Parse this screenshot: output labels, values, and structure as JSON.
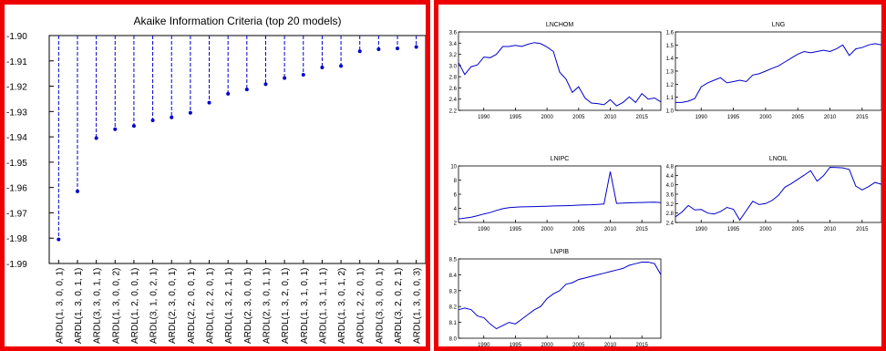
{
  "colors": {
    "frame": "#ee0000",
    "series": "#0000cc",
    "axis": "#000000",
    "background": "#ffffff"
  },
  "chart_data": [
    {
      "type": "lollipop",
      "title": "Akaike Information Criteria (top 20 models)",
      "ylim": [
        -1.99,
        -1.9
      ],
      "yticks": [
        -1.9,
        -1.91,
        -1.92,
        -1.93,
        -1.94,
        -1.95,
        -1.96,
        -1.97,
        -1.98,
        -1.99
      ],
      "ytick_labels": [
        "-1.90",
        "-1.91",
        "-1.92",
        "-1.93",
        "-1.94",
        "-1.95",
        "-1.96",
        "-1.97",
        "-1.98",
        "-1.99"
      ],
      "grid": false,
      "categories": [
        "ARDL(1, 3, 0, 0, 1)",
        "ARDL(1, 3, 0, 1, 1)",
        "ARDL(3, 3, 0, 1, 1)",
        "ARDL(1, 3, 0, 0, 2)",
        "ARDL(1, 2, 0, 0, 1)",
        "ARDL(3, 1, 0, 2, 1)",
        "ARDL(2, 3, 0, 0, 1)",
        "ARDL(2, 2, 0, 0, 1)",
        "ARDL(1, 2, 2, 0, 1)",
        "ARDL(1, 3, 2, 1, 1)",
        "ARDL(2, 3, 0, 0, 1)",
        "ARDL(2, 3, 0, 1, 1)",
        "ARDL(1, 3, 2, 0, 1)",
        "ARDL(1, 3, 1, 0, 1)",
        "ARDL(1, 3, 1, 1, 1)",
        "ARDL(1, 3, 0, 1, 2)",
        "ARDL(1, 2, 2, 0, 1)",
        "ARDL(3, 3, 0, 0, 1)",
        "ARDL(3, 2, 0, 2, 1)",
        "ARDL(1, 3, 0, 0, 3)"
      ],
      "values": [
        -1.9805,
        -1.9615,
        -1.9405,
        -1.937,
        -1.9357,
        -1.9335,
        -1.9323,
        -1.9305,
        -1.9265,
        -1.923,
        -1.9213,
        -1.9192,
        -1.9168,
        -1.9155,
        -1.9126,
        -1.912,
        -1.9062,
        -1.9054,
        -1.9051,
        -1.9045
      ]
    },
    {
      "type": "line",
      "title": "LNCHOM",
      "xlim": [
        1986,
        2018
      ],
      "xticks": [
        1990,
        1995,
        2000,
        2005,
        2010,
        2015
      ],
      "ylim": [
        2.2,
        3.6
      ],
      "yticks": [
        2.2,
        2.4,
        2.6,
        2.8,
        3.0,
        3.2,
        3.4,
        3.6
      ],
      "ytick_labels": [
        "2.2",
        "2.4",
        "2.6",
        "2.8",
        "3.0",
        "3.2",
        "3.4",
        "3.6"
      ],
      "x": [
        1986,
        1987,
        1988,
        1989,
        1990,
        1991,
        1992,
        1993,
        1994,
        1995,
        1996,
        1997,
        1998,
        1999,
        2000,
        2001,
        2002,
        2003,
        2004,
        2005,
        2006,
        2007,
        2008,
        2009,
        2010,
        2011,
        2012,
        2013,
        2014,
        2015,
        2016,
        2017,
        2018
      ],
      "values": [
        3.05,
        2.84,
        2.98,
        3.01,
        3.15,
        3.14,
        3.2,
        3.34,
        3.34,
        3.36,
        3.34,
        3.38,
        3.41,
        3.39,
        3.33,
        3.25,
        2.88,
        2.76,
        2.52,
        2.62,
        2.42,
        2.33,
        2.32,
        2.3,
        2.39,
        2.28,
        2.34,
        2.44,
        2.34,
        2.5,
        2.4,
        2.42,
        2.35
      ]
    },
    {
      "type": "line",
      "title": "LNG",
      "xlim": [
        1986,
        2018
      ],
      "xticks": [
        1990,
        1995,
        2000,
        2005,
        2010,
        2015
      ],
      "ylim": [
        1.0,
        1.6
      ],
      "yticks": [
        1.0,
        1.1,
        1.2,
        1.3,
        1.4,
        1.5,
        1.6
      ],
      "ytick_labels": [
        "1.0",
        "1.1",
        "1.2",
        "1.3",
        "1.4",
        "1.5",
        "1.6"
      ],
      "x": [
        1986,
        1987,
        1988,
        1989,
        1990,
        1991,
        1992,
        1993,
        1994,
        1995,
        1996,
        1997,
        1998,
        1999,
        2000,
        2001,
        2002,
        2003,
        2004,
        2005,
        2006,
        2007,
        2008,
        2009,
        2010,
        2011,
        2012,
        2013,
        2014,
        2015,
        2016,
        2017,
        2018
      ],
      "values": [
        1.06,
        1.06,
        1.07,
        1.09,
        1.18,
        1.21,
        1.23,
        1.25,
        1.21,
        1.22,
        1.23,
        1.22,
        1.27,
        1.28,
        1.3,
        1.32,
        1.34,
        1.37,
        1.4,
        1.43,
        1.45,
        1.44,
        1.45,
        1.46,
        1.45,
        1.47,
        1.5,
        1.42,
        1.47,
        1.48,
        1.5,
        1.51,
        1.5
      ]
    },
    {
      "type": "line",
      "title": "LNIPC",
      "xlim": [
        1986,
        2018
      ],
      "xticks": [
        1990,
        1995,
        2000,
        2005,
        2010,
        2015
      ],
      "ylim": [
        2,
        10
      ],
      "yticks": [
        2,
        4,
        6,
        8,
        10
      ],
      "ytick_labels": [
        "2",
        "4",
        "6",
        "8",
        "10"
      ],
      "x": [
        1986,
        1987,
        1988,
        1989,
        1990,
        1991,
        1992,
        1993,
        1994,
        1995,
        1996,
        1997,
        1998,
        1999,
        2000,
        2001,
        2002,
        2003,
        2004,
        2005,
        2006,
        2007,
        2008,
        2009,
        2010,
        2011,
        2012,
        2013,
        2014,
        2015,
        2016,
        2017,
        2018
      ],
      "values": [
        2.5,
        2.6,
        2.75,
        2.95,
        3.2,
        3.4,
        3.7,
        3.95,
        4.1,
        4.15,
        4.2,
        4.22,
        4.25,
        4.27,
        4.3,
        4.33,
        4.35,
        4.38,
        4.4,
        4.45,
        4.48,
        4.5,
        4.55,
        4.6,
        9.2,
        4.7,
        4.75,
        4.78,
        4.8,
        4.82,
        4.85,
        4.88,
        4.8
      ]
    },
    {
      "type": "line",
      "title": "LNOIL",
      "xlim": [
        1986,
        2018
      ],
      "xticks": [
        1990,
        1995,
        2000,
        2005,
        2010,
        2015
      ],
      "ylim": [
        2.4,
        4.8
      ],
      "yticks": [
        2.4,
        2.8,
        3.2,
        3.6,
        4.0,
        4.4,
        4.8
      ],
      "ytick_labels": [
        "2.4",
        "2.8",
        "3.2",
        "3.6",
        "4.0",
        "4.4",
        "4.8"
      ],
      "x": [
        1986,
        1987,
        1988,
        1989,
        1990,
        1991,
        1992,
        1993,
        1994,
        1995,
        1996,
        1997,
        1998,
        1999,
        2000,
        2001,
        2002,
        2003,
        2004,
        2005,
        2006,
        2007,
        2008,
        2009,
        2010,
        2011,
        2012,
        2013,
        2014,
        2015,
        2016,
        2017,
        2018
      ],
      "values": [
        2.64,
        2.84,
        3.12,
        2.93,
        2.95,
        2.8,
        2.76,
        2.86,
        3.04,
        2.96,
        2.5,
        2.9,
        3.3,
        3.16,
        3.2,
        3.33,
        3.55,
        3.9,
        4.05,
        4.23,
        4.41,
        4.6,
        4.15,
        4.38,
        4.74,
        4.73,
        4.72,
        4.65,
        3.95,
        3.78,
        3.92,
        4.1,
        4.02
      ]
    },
    {
      "type": "line",
      "title": "LNPIB",
      "xlim": [
        1986,
        2018
      ],
      "xticks": [
        1990,
        1995,
        2000,
        2005,
        2010,
        2015
      ],
      "ylim": [
        8.0,
        8.5
      ],
      "yticks": [
        8.0,
        8.1,
        8.2,
        8.3,
        8.4,
        8.5
      ],
      "ytick_labels": [
        "8.0",
        "8.1",
        "8.2",
        "8.3",
        "8.4",
        "8.5"
      ],
      "x": [
        1986,
        1987,
        1988,
        1989,
        1990,
        1991,
        1992,
        1993,
        1994,
        1995,
        1996,
        1997,
        1998,
        1999,
        2000,
        2001,
        2002,
        2003,
        2004,
        2005,
        2006,
        2007,
        2008,
        2009,
        2010,
        2011,
        2012,
        2013,
        2014,
        2015,
        2016,
        2017,
        2018
      ],
      "values": [
        8.18,
        8.19,
        8.18,
        8.14,
        8.13,
        8.09,
        8.06,
        8.08,
        8.1,
        8.09,
        8.12,
        8.15,
        8.18,
        8.2,
        8.25,
        8.28,
        8.3,
        8.34,
        8.35,
        8.37,
        8.38,
        8.39,
        8.4,
        8.41,
        8.42,
        8.43,
        8.44,
        8.46,
        8.47,
        8.48,
        8.48,
        8.47,
        8.4
      ]
    }
  ]
}
